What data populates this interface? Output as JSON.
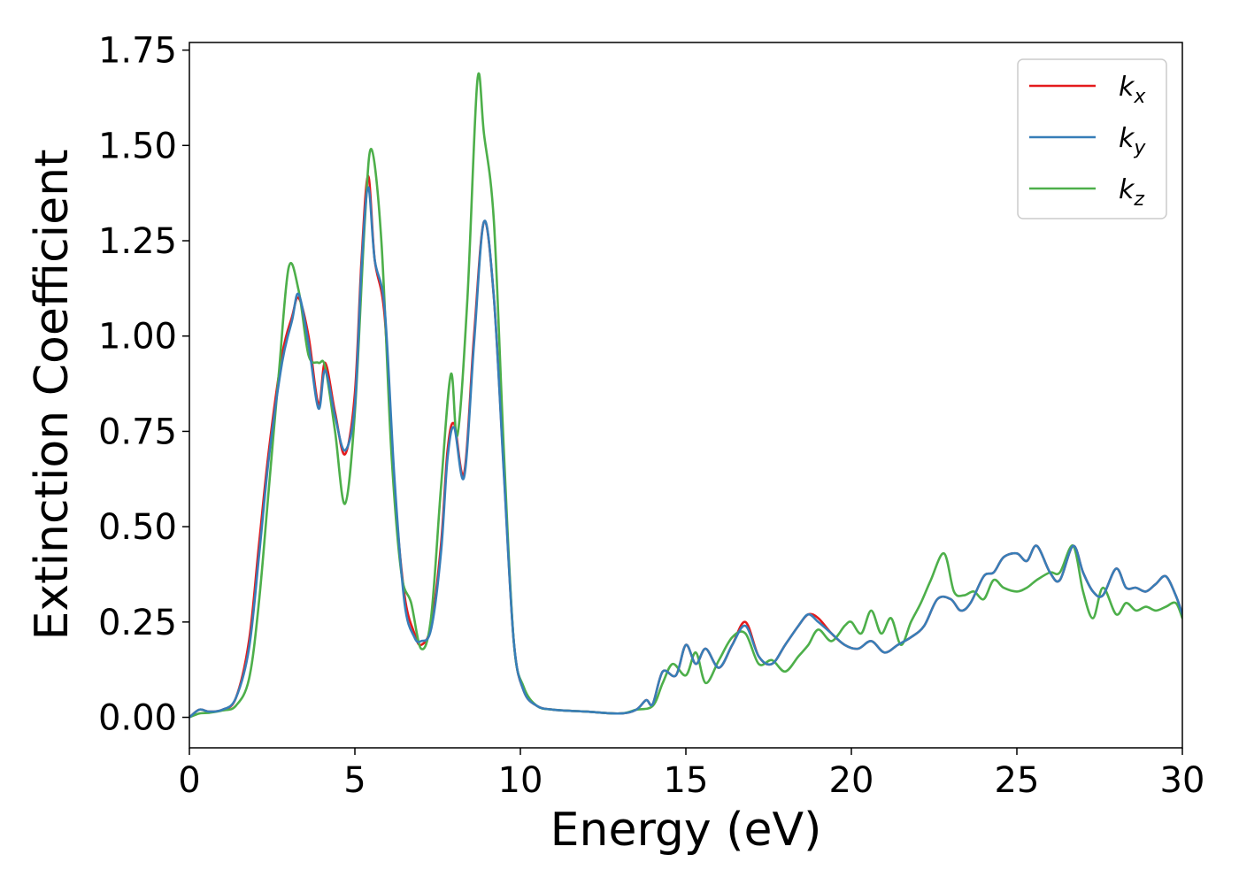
{
  "chart_data": {
    "type": "line",
    "title": "",
    "xlabel": "Energy (eV)",
    "ylabel": "Extinction Coefficient",
    "xlim": [
      0,
      30
    ],
    "ylim": [
      -0.08,
      1.77
    ],
    "xticks": [
      0,
      5,
      10,
      15,
      20,
      25,
      30
    ],
    "xtick_labels": [
      "0",
      "5",
      "10",
      "15",
      "20",
      "25",
      "30"
    ],
    "yticks": [
      0.0,
      0.25,
      0.5,
      0.75,
      1.0,
      1.25,
      1.5,
      1.75
    ],
    "ytick_labels": [
      "0.00",
      "0.25",
      "0.50",
      "0.75",
      "1.00",
      "1.25",
      "1.50",
      "1.75"
    ],
    "grid": false,
    "legend_position": "top-right",
    "series": [
      {
        "name": "k_x",
        "name_base": "k",
        "name_sub": "x",
        "color": "#e41a1c",
        "x": [
          0,
          0.3,
          0.6,
          1,
          1.4,
          1.8,
          2.1,
          2.4,
          2.8,
          3.1,
          3.3,
          3.6,
          3.9,
          4.1,
          4.4,
          4.7,
          5.0,
          5.2,
          5.4,
          5.6,
          5.9,
          6.2,
          6.5,
          6.8,
          7.0,
          7.3,
          7.6,
          7.8,
          8.0,
          8.3,
          8.6,
          8.9,
          9.2,
          9.5,
          9.8,
          10.1,
          10.5,
          11,
          12,
          13,
          13.5,
          13.8,
          14.0,
          14.3,
          14.7,
          15.0,
          15.3,
          15.6,
          16.0,
          16.4,
          16.8,
          17.2,
          17.6,
          18.0,
          18.4,
          18.7,
          19.0,
          19.4,
          19.8,
          20.2,
          20.6,
          21.0,
          21.4,
          21.8,
          22.2,
          22.6,
          23.0,
          23.3,
          23.6,
          24.0,
          24.3,
          24.6,
          25.0,
          25.3,
          25.6,
          26.0,
          26.3,
          26.7,
          27.0,
          27.3,
          27.6,
          28.0,
          28.3,
          28.6,
          28.9,
          29.2,
          29.5,
          29.8,
          30.0
        ],
        "y": [
          0,
          0.02,
          0.015,
          0.02,
          0.05,
          0.2,
          0.45,
          0.7,
          0.95,
          1.05,
          1.1,
          1.0,
          0.82,
          0.93,
          0.8,
          0.69,
          0.85,
          1.2,
          1.42,
          1.2,
          1.05,
          0.6,
          0.32,
          0.22,
          0.19,
          0.24,
          0.45,
          0.7,
          0.77,
          0.64,
          1.0,
          1.3,
          1.1,
          0.65,
          0.2,
          0.07,
          0.03,
          0.02,
          0.015,
          0.01,
          0.02,
          0.045,
          0.035,
          0.12,
          0.11,
          0.19,
          0.14,
          0.18,
          0.13,
          0.19,
          0.25,
          0.16,
          0.14,
          0.19,
          0.24,
          0.27,
          0.26,
          0.22,
          0.19,
          0.18,
          0.2,
          0.17,
          0.19,
          0.21,
          0.24,
          0.31,
          0.31,
          0.28,
          0.3,
          0.37,
          0.38,
          0.42,
          0.43,
          0.41,
          0.45,
          0.38,
          0.36,
          0.45,
          0.38,
          0.33,
          0.32,
          0.39,
          0.34,
          0.34,
          0.33,
          0.35,
          0.37,
          0.32,
          0.27
        ]
      },
      {
        "name": "k_y",
        "name_base": "k",
        "name_sub": "y",
        "color": "#377eb8",
        "x": [
          0,
          0.3,
          0.6,
          1,
          1.4,
          1.8,
          2.1,
          2.4,
          2.8,
          3.1,
          3.3,
          3.6,
          3.9,
          4.1,
          4.4,
          4.7,
          5.0,
          5.2,
          5.4,
          5.6,
          5.9,
          6.2,
          6.5,
          6.8,
          7.0,
          7.3,
          7.6,
          7.8,
          8.0,
          8.3,
          8.6,
          8.9,
          9.2,
          9.5,
          9.8,
          10.1,
          10.5,
          11,
          12,
          13,
          13.5,
          13.8,
          14.0,
          14.3,
          14.7,
          15.0,
          15.3,
          15.6,
          16.0,
          16.4,
          16.8,
          17.2,
          17.6,
          18.0,
          18.4,
          18.7,
          19.0,
          19.4,
          19.8,
          20.2,
          20.6,
          21.0,
          21.4,
          21.8,
          22.2,
          22.6,
          23.0,
          23.3,
          23.6,
          24.0,
          24.3,
          24.6,
          25.0,
          25.3,
          25.6,
          26.0,
          26.3,
          26.7,
          27.0,
          27.3,
          27.6,
          28.0,
          28.3,
          28.6,
          28.9,
          29.2,
          29.5,
          29.8,
          30.0
        ],
        "y": [
          0,
          0.02,
          0.015,
          0.02,
          0.05,
          0.18,
          0.42,
          0.68,
          0.93,
          1.04,
          1.11,
          0.98,
          0.81,
          0.91,
          0.79,
          0.7,
          0.82,
          1.18,
          1.39,
          1.2,
          1.07,
          0.62,
          0.3,
          0.21,
          0.2,
          0.23,
          0.43,
          0.68,
          0.76,
          0.63,
          0.98,
          1.3,
          1.1,
          0.64,
          0.2,
          0.07,
          0.03,
          0.02,
          0.015,
          0.01,
          0.02,
          0.045,
          0.035,
          0.12,
          0.11,
          0.19,
          0.14,
          0.18,
          0.13,
          0.19,
          0.24,
          0.16,
          0.14,
          0.19,
          0.24,
          0.27,
          0.25,
          0.22,
          0.19,
          0.18,
          0.2,
          0.17,
          0.19,
          0.21,
          0.24,
          0.31,
          0.31,
          0.28,
          0.3,
          0.37,
          0.38,
          0.42,
          0.43,
          0.41,
          0.45,
          0.38,
          0.36,
          0.45,
          0.38,
          0.33,
          0.32,
          0.39,
          0.34,
          0.34,
          0.33,
          0.35,
          0.37,
          0.32,
          0.27
        ]
      },
      {
        "name": "k_z",
        "name_base": "k",
        "name_sub": "z",
        "color": "#4daf4a",
        "x": [
          0,
          0.3,
          0.6,
          1,
          1.4,
          1.8,
          2.1,
          2.4,
          2.7,
          3.0,
          3.3,
          3.6,
          3.9,
          4.1,
          4.4,
          4.7,
          5.0,
          5.3,
          5.5,
          5.8,
          6.1,
          6.4,
          6.7,
          7.0,
          7.3,
          7.6,
          7.9,
          8.1,
          8.4,
          8.7,
          8.9,
          9.2,
          9.5,
          9.8,
          10.1,
          10.5,
          11,
          12,
          13,
          13.5,
          14.0,
          14.3,
          14.6,
          15.0,
          15.3,
          15.6,
          16.0,
          16.4,
          16.8,
          17.2,
          17.6,
          18.0,
          18.4,
          18.7,
          19.0,
          19.4,
          19.8,
          20.0,
          20.3,
          20.6,
          20.9,
          21.2,
          21.5,
          21.8,
          22.1,
          22.4,
          22.8,
          23.1,
          23.4,
          23.7,
          24.0,
          24.3,
          24.6,
          25.0,
          25.3,
          25.6,
          26.0,
          26.3,
          26.7,
          27.0,
          27.3,
          27.6,
          28.0,
          28.3,
          28.6,
          28.9,
          29.2,
          29.5,
          29.8,
          30.0
        ],
        "y": [
          0,
          0.01,
          0.012,
          0.018,
          0.03,
          0.1,
          0.3,
          0.6,
          0.9,
          1.18,
          1.12,
          0.95,
          0.93,
          0.92,
          0.75,
          0.56,
          0.8,
          1.3,
          1.49,
          1.25,
          0.7,
          0.38,
          0.3,
          0.18,
          0.26,
          0.6,
          0.9,
          0.74,
          1.1,
          1.67,
          1.53,
          1.3,
          0.7,
          0.2,
          0.08,
          0.03,
          0.02,
          0.015,
          0.01,
          0.02,
          0.03,
          0.09,
          0.14,
          0.11,
          0.17,
          0.09,
          0.15,
          0.21,
          0.22,
          0.14,
          0.15,
          0.12,
          0.16,
          0.19,
          0.23,
          0.2,
          0.24,
          0.25,
          0.22,
          0.28,
          0.22,
          0.26,
          0.19,
          0.25,
          0.3,
          0.36,
          0.43,
          0.33,
          0.32,
          0.33,
          0.31,
          0.36,
          0.34,
          0.33,
          0.34,
          0.36,
          0.38,
          0.38,
          0.45,
          0.33,
          0.26,
          0.34,
          0.27,
          0.3,
          0.28,
          0.29,
          0.28,
          0.29,
          0.3,
          0.26
        ]
      }
    ]
  }
}
